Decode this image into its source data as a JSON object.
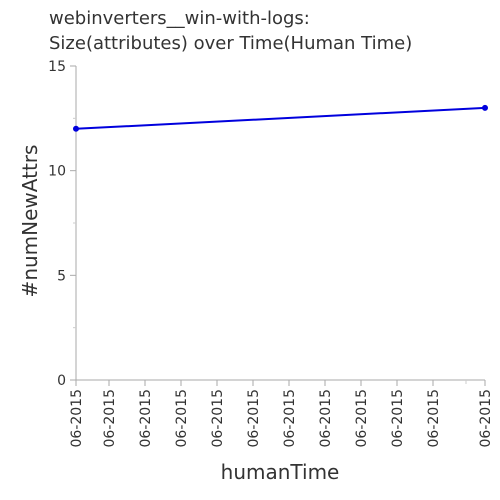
{
  "chart_data": {
    "type": "line",
    "title_line1": "webinverters__win-with-logs:",
    "title_line2": "Size(attributes) over Time(Human Time)",
    "xlabel": "humanTime",
    "ylabel": "#numNewAttrs",
    "ylim": [
      0,
      15
    ],
    "yticks": [
      "0",
      "5",
      "10",
      "15"
    ],
    "xtick_labels": [
      "06-2015",
      "06-2015",
      "06-2015",
      "06-2015",
      "06-2015",
      "06-2015",
      "06-2015",
      "06-2015",
      "06-2015",
      "06-2015",
      "06-2015",
      "06-2015"
    ],
    "grid": false,
    "series": [
      {
        "color": "#0000dd",
        "x": [
          0,
          1
        ],
        "y": [
          12,
          13
        ]
      }
    ]
  }
}
